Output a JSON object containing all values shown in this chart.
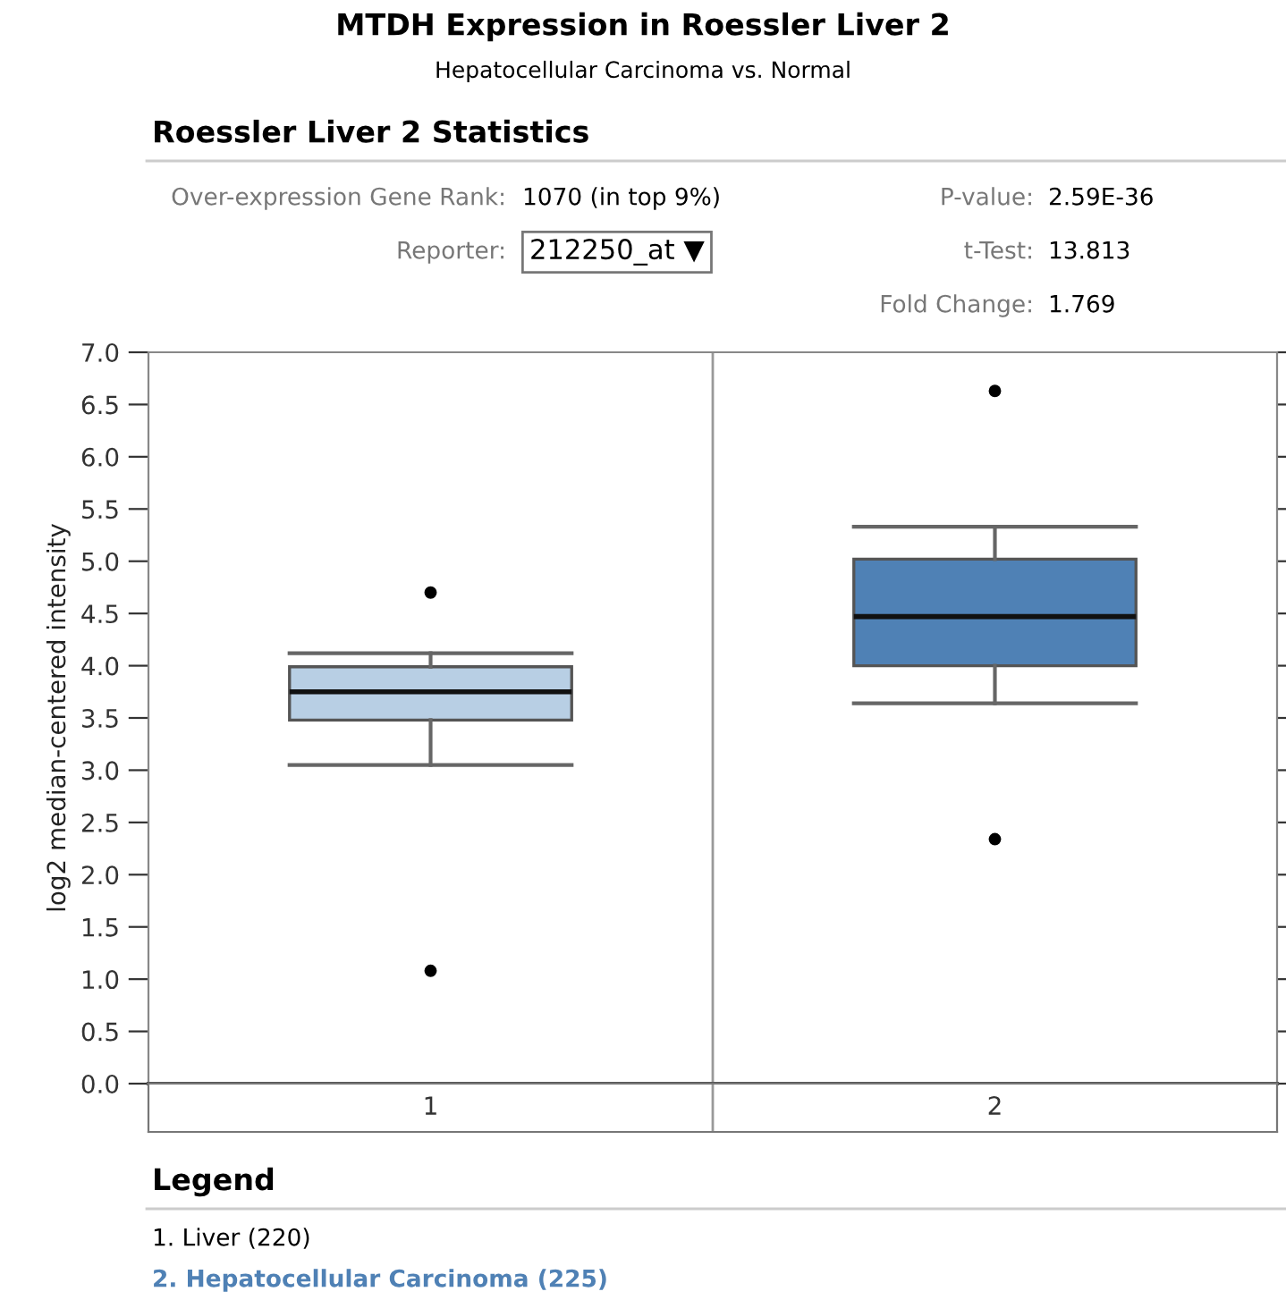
{
  "chart_data": {
    "type": "box",
    "title": "MTDH Expression in Roessler Liver 2",
    "subtitle": "Hepatocellular Carcinoma vs. Normal",
    "ylabel": "log2 median-centered intensity",
    "categories": [
      "1",
      "2"
    ],
    "colors": [
      "#b8cfe4",
      "#4f81b5"
    ],
    "boxes": [
      {
        "low": 3.05,
        "q1": 3.48,
        "median": 3.75,
        "q3": 3.99,
        "high": 4.12,
        "outliers": [
          4.7,
          1.08
        ]
      },
      {
        "low": 3.64,
        "q1": 4.0,
        "median": 4.47,
        "q3": 5.02,
        "high": 5.33,
        "outliers": [
          6.63,
          2.34
        ]
      }
    ],
    "ylim": [
      0,
      7
    ],
    "yticks": [
      {
        "value": 0,
        "label": "0.0"
      },
      {
        "value": 0.5,
        "label": "0.5"
      },
      {
        "value": 1,
        "label": "1.0"
      },
      {
        "value": 1.5,
        "label": "1.5"
      },
      {
        "value": 2,
        "label": "2.0"
      },
      {
        "value": 2.5,
        "label": "2.5"
      },
      {
        "value": 3,
        "label": "3.0"
      },
      {
        "value": 3.5,
        "label": "3.5"
      },
      {
        "value": 4,
        "label": "4.0"
      },
      {
        "value": 4.5,
        "label": "4.5"
      },
      {
        "value": 5,
        "label": "5.0"
      },
      {
        "value": 5.5,
        "label": "5.5"
      },
      {
        "value": 6,
        "label": "6.0"
      },
      {
        "value": 6.5,
        "label": "6.5"
      },
      {
        "value": 7,
        "label": "7.0"
      }
    ],
    "grid": false,
    "legend": false,
    "annotations": [
      "Roessler Liver 2 Statistics",
      "Over-expression Gene Rank:",
      "1070 (in top 9%)",
      "Reporter:",
      "212250_at ▼",
      "P-value:",
      "2.59E-36",
      "t-Test:",
      "13.813",
      "Fold Change:",
      "1.769",
      "Legend",
      "1. Liver (220)",
      "2. Hepatocellular Carcinoma (225)"
    ]
  }
}
